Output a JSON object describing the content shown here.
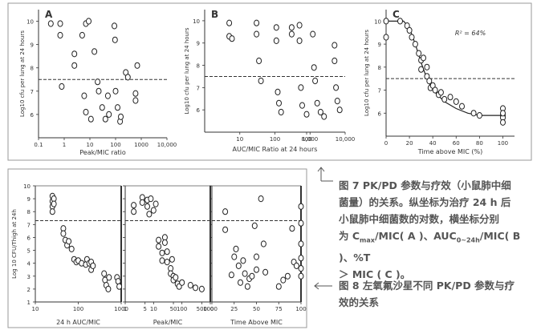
{
  "fig7": {
    "caption": "图 7 PK/PD 参数与疗效（小鼠肺中细菌量）的关系。纵坐标为治疗 24 h 后小鼠肺中细菌数的对数，横坐标分别为 C",
    "caption_lines": [
      "图 7 PK/PD 参数与疗效（小鼠肺中细",
      "菌量）的关系。纵坐标为治疗 24 h 后",
      "小鼠肺中细菌数的对数，横坐标分别"
    ],
    "caption_line4_parts": [
      "为 C",
      "max",
      "/MIC( A )、AUC",
      "0~24h",
      "/MIC( B )、%T"
    ],
    "caption_line5": "＞ MIC ( C )。"
  },
  "fig8": {
    "caption_lines": [
      "图 8 左氧氟沙星不同 PK/PD 参数与疗",
      "效的关系"
    ]
  },
  "chart_data": [
    {
      "panel": "A",
      "type": "scatter",
      "xlabel": "Peak/MIC ratio",
      "ylabel": "Log10 cfu per lung at 24 hours",
      "xscale": "log",
      "xlim": [
        0.1,
        10000
      ],
      "ylim": [
        5,
        10.5
      ],
      "xticks": [
        0.1,
        1,
        10,
        100,
        1000,
        10000
      ],
      "xticklabels": [
        "0.1",
        "1",
        "10",
        "100",
        "1000",
        "10,000"
      ],
      "yticks": [
        6,
        7,
        8,
        9,
        10
      ],
      "yticklabels": [
        "6",
        "7",
        "8",
        "9",
        "10"
      ],
      "threshold": 7.5,
      "points": [
        [
          0.3,
          9.9
        ],
        [
          0.7,
          9.9
        ],
        [
          0.7,
          9.4
        ],
        [
          0.8,
          7.2
        ],
        [
          2.5,
          8.6
        ],
        [
          2.5,
          8.1
        ],
        [
          5,
          9.4
        ],
        [
          7,
          9.9
        ],
        [
          9,
          10
        ],
        [
          6,
          6.8
        ],
        [
          7,
          6.1
        ],
        [
          11,
          5.8
        ],
        [
          15,
          8.7
        ],
        [
          20,
          7.4
        ],
        [
          22,
          7.0
        ],
        [
          30,
          6.3
        ],
        [
          40,
          5.8
        ],
        [
          50,
          6.8
        ],
        [
          55,
          6.0
        ],
        [
          90,
          9.8
        ],
        [
          95,
          9.2
        ],
        [
          100,
          7.0
        ],
        [
          120,
          6.3
        ],
        [
          150,
          5.7
        ],
        [
          160,
          5.9
        ],
        [
          250,
          7.8
        ],
        [
          300,
          7.6
        ],
        [
          600,
          6.6
        ],
        [
          600,
          6.9
        ],
        [
          700,
          8.1
        ]
      ]
    },
    {
      "panel": "B",
      "type": "scatter",
      "xlabel": "AUC/MIC Ratio at 24 hours",
      "ylabel": "Log10 cfu per lung at 24 hours",
      "xscale": "log",
      "xlim": [
        1,
        10000
      ],
      "ylim": [
        5,
        10.5
      ],
      "xticks": [
        10,
        100,
        800,
        1000,
        10000
      ],
      "xticklabels": [
        "10",
        "100",
        "800",
        "1,000",
        "10,000"
      ],
      "yticks": [
        6,
        7,
        8,
        9,
        10
      ],
      "yticklabels": [
        "6",
        "7",
        "8",
        "9",
        "10"
      ],
      "threshold": 7.5,
      "points": [
        [
          5,
          9.9
        ],
        [
          5,
          9.3
        ],
        [
          6,
          9.2
        ],
        [
          30,
          9.9
        ],
        [
          30,
          9.4
        ],
        [
          35,
          8.2
        ],
        [
          40,
          7.3
        ],
        [
          110,
          9.7
        ],
        [
          110,
          9.1
        ],
        [
          120,
          6.8
        ],
        [
          130,
          6.3
        ],
        [
          150,
          5.9
        ],
        [
          300,
          9.7
        ],
        [
          300,
          9.4
        ],
        [
          500,
          9.8
        ],
        [
          500,
          9.1
        ],
        [
          550,
          7.0
        ],
        [
          600,
          6.2
        ],
        [
          800,
          5.8
        ],
        [
          1200,
          9.4
        ],
        [
          1300,
          7.9
        ],
        [
          1400,
          7.3
        ],
        [
          1600,
          6.3
        ],
        [
          2000,
          5.9
        ],
        [
          2500,
          5.7
        ],
        [
          5000,
          8.9
        ],
        [
          5000,
          8.2
        ],
        [
          5500,
          7.0
        ],
        [
          6000,
          6.4
        ],
        [
          7000,
          6.0
        ]
      ]
    },
    {
      "panel": "C",
      "type": "scatter",
      "xlabel": "Time above MIC (%)",
      "ylabel": "Log10 cfu per lung at 24 hours",
      "xlim": [
        0,
        110
      ],
      "ylim": [
        5,
        10.5
      ],
      "xticks": [
        0,
        20,
        40,
        60,
        80,
        100
      ],
      "xticklabels": [
        "0",
        "20",
        "40",
        "60",
        "80",
        "100"
      ],
      "yticks": [
        6,
        7,
        8,
        9,
        10
      ],
      "yticklabels": [
        "6",
        "7",
        "8",
        "9",
        "10"
      ],
      "threshold": 7.5,
      "annotation": "R² = 64%",
      "curve": [
        [
          0,
          10
        ],
        [
          15,
          10
        ],
        [
          20,
          9.7
        ],
        [
          25,
          9.0
        ],
        [
          30,
          8.2
        ],
        [
          35,
          7.5
        ],
        [
          40,
          7.0
        ],
        [
          50,
          6.5
        ],
        [
          60,
          6.2
        ],
        [
          70,
          6.0
        ],
        [
          80,
          5.9
        ],
        [
          90,
          5.9
        ],
        [
          100,
          5.9
        ]
      ],
      "points": [
        [
          0,
          10
        ],
        [
          0,
          9.3
        ],
        [
          12,
          10
        ],
        [
          18,
          9.8
        ],
        [
          20,
          9.6
        ],
        [
          22,
          9.3
        ],
        [
          25,
          9.0
        ],
        [
          28,
          8.6
        ],
        [
          30,
          8.3
        ],
        [
          30,
          7.9
        ],
        [
          32,
          8.4
        ],
        [
          35,
          8.0
        ],
        [
          35,
          7.6
        ],
        [
          37,
          7.4
        ],
        [
          38,
          7.1
        ],
        [
          40,
          7.2
        ],
        [
          42,
          7.0
        ],
        [
          45,
          6.8
        ],
        [
          47,
          6.9
        ],
        [
          50,
          6.6
        ],
        [
          55,
          6.7
        ],
        [
          60,
          6.5
        ],
        [
          65,
          6.3
        ],
        [
          75,
          6.0
        ],
        [
          80,
          5.9
        ],
        [
          100,
          6.2
        ],
        [
          100,
          5.9
        ],
        [
          100,
          5.8
        ],
        [
          100,
          6.0
        ],
        [
          100,
          5.6
        ]
      ]
    },
    {
      "panel": "AUC",
      "type": "scatter",
      "xlabel": "24 h AUC/MIC",
      "ylabel": "Log 10 CFU/Thigh at 24h",
      "xscale": "log",
      "xlim": [
        10,
        1000
      ],
      "ylim": [
        1,
        10
      ],
      "xticks": [
        10,
        100,
        1000
      ],
      "xticklabels": [
        "10",
        "100",
        "1000"
      ],
      "yticks": [
        1,
        2,
        3,
        4,
        5,
        6,
        7,
        8,
        9,
        10
      ],
      "yticklabels": [
        "1",
        "2",
        "3",
        "4",
        "5",
        "6",
        "7",
        "8",
        "9",
        "10"
      ],
      "threshold": 7.3,
      "points": [
        [
          25,
          9.2
        ],
        [
          25,
          8.8
        ],
        [
          25,
          8.4
        ],
        [
          25,
          8.0
        ],
        [
          27,
          9.0
        ],
        [
          27,
          8.6
        ],
        [
          45,
          6.7
        ],
        [
          45,
          6.3
        ],
        [
          50,
          5.8
        ],
        [
          55,
          5.4
        ],
        [
          60,
          5.7
        ],
        [
          70,
          5.1
        ],
        [
          80,
          4.3
        ],
        [
          90,
          4.1
        ],
        [
          100,
          4.2
        ],
        [
          120,
          4.0
        ],
        [
          150,
          3.9
        ],
        [
          160,
          4.3
        ],
        [
          180,
          4.0
        ],
        [
          200,
          3.5
        ],
        [
          200,
          4.1
        ],
        [
          220,
          3.8
        ],
        [
          400,
          3.2
        ],
        [
          420,
          2.7
        ],
        [
          450,
          2.3
        ],
        [
          500,
          2.0
        ],
        [
          520,
          2.9
        ],
        [
          800,
          2.9
        ],
        [
          850,
          2.6
        ],
        [
          900,
          2.2
        ]
      ]
    },
    {
      "panel": "Peak",
      "type": "scatter",
      "xlabel": "Peak/MIC",
      "ylabel": "Log 10 CFU/Thigh at 24h",
      "xscale": "log",
      "xlim": [
        1,
        1000
      ],
      "ylim": [
        1,
        10
      ],
      "xticks": [
        1,
        5,
        10,
        50,
        100,
        500,
        1000
      ],
      "xticklabels": [
        "1",
        "5",
        "10",
        "50",
        "100",
        "500",
        "1000"
      ],
      "yticks": [
        1,
        2,
        3,
        4,
        5,
        6,
        7,
        8,
        9,
        10
      ],
      "yticklabels": [
        "1",
        "2",
        "3",
        "4",
        "5",
        "6",
        "7",
        "8",
        "9",
        "10"
      ],
      "threshold": 7.3,
      "points": [
        [
          2,
          8.5
        ],
        [
          2,
          8.0
        ],
        [
          4,
          9.1
        ],
        [
          4,
          8.7
        ],
        [
          6,
          8.9
        ],
        [
          6,
          8.4
        ],
        [
          7,
          7.8
        ],
        [
          8,
          9.0
        ],
        [
          10,
          8.1
        ],
        [
          12,
          8.6
        ],
        [
          15,
          5.8
        ],
        [
          15,
          5.3
        ],
        [
          20,
          4.2
        ],
        [
          20,
          4.8
        ],
        [
          25,
          6.0
        ],
        [
          25,
          5.6
        ],
        [
          30,
          4.1
        ],
        [
          30,
          4.9
        ],
        [
          40,
          3.6
        ],
        [
          40,
          3.2
        ],
        [
          45,
          4.3
        ],
        [
          50,
          3.0
        ],
        [
          50,
          2.7
        ],
        [
          60,
          2.9
        ],
        [
          70,
          2.4
        ],
        [
          80,
          2.2
        ],
        [
          100,
          2.5
        ],
        [
          200,
          2.3
        ],
        [
          300,
          2.1
        ],
        [
          500,
          2.0
        ]
      ]
    },
    {
      "panel": "Time",
      "type": "scatter",
      "xlabel": "Time Above MIC",
      "ylabel": "Log 10 CFU/Thigh at 24h",
      "xlim": [
        0,
        100
      ],
      "ylim": [
        1,
        10
      ],
      "xticks": [
        0,
        25,
        50,
        75,
        100
      ],
      "xticklabels": [
        "0",
        "25",
        "50",
        "75",
        "100"
      ],
      "yticks": [
        1,
        2,
        3,
        4,
        5,
        6,
        7,
        8,
        9,
        10
      ],
      "yticklabels": [
        "1",
        "2",
        "3",
        "4",
        "5",
        "6",
        "7",
        "8",
        "9",
        "10"
      ],
      "threshold": 7.3,
      "points": [
        [
          15,
          6.6
        ],
        [
          15,
          8.0
        ],
        [
          22,
          3.1
        ],
        [
          25,
          4.5
        ],
        [
          27,
          5.1
        ],
        [
          30,
          3.8
        ],
        [
          32,
          2.5
        ],
        [
          35,
          4.2
        ],
        [
          37,
          3.2
        ],
        [
          40,
          2.2
        ],
        [
          42,
          2.8
        ],
        [
          45,
          3.0
        ],
        [
          48,
          6.9
        ],
        [
          50,
          4.5
        ],
        [
          50,
          3.5
        ],
        [
          55,
          9.0
        ],
        [
          58,
          5.5
        ],
        [
          60,
          3.3
        ],
        [
          75,
          2.2
        ],
        [
          80,
          2.7
        ],
        [
          85,
          3.0
        ],
        [
          90,
          6.7
        ],
        [
          92,
          4.1
        ],
        [
          95,
          3.8
        ],
        [
          100,
          8.4
        ],
        [
          100,
          7.1
        ],
        [
          100,
          5.5
        ],
        [
          100,
          4.4
        ],
        [
          100,
          3.6
        ],
        [
          100,
          3.0
        ]
      ]
    }
  ]
}
